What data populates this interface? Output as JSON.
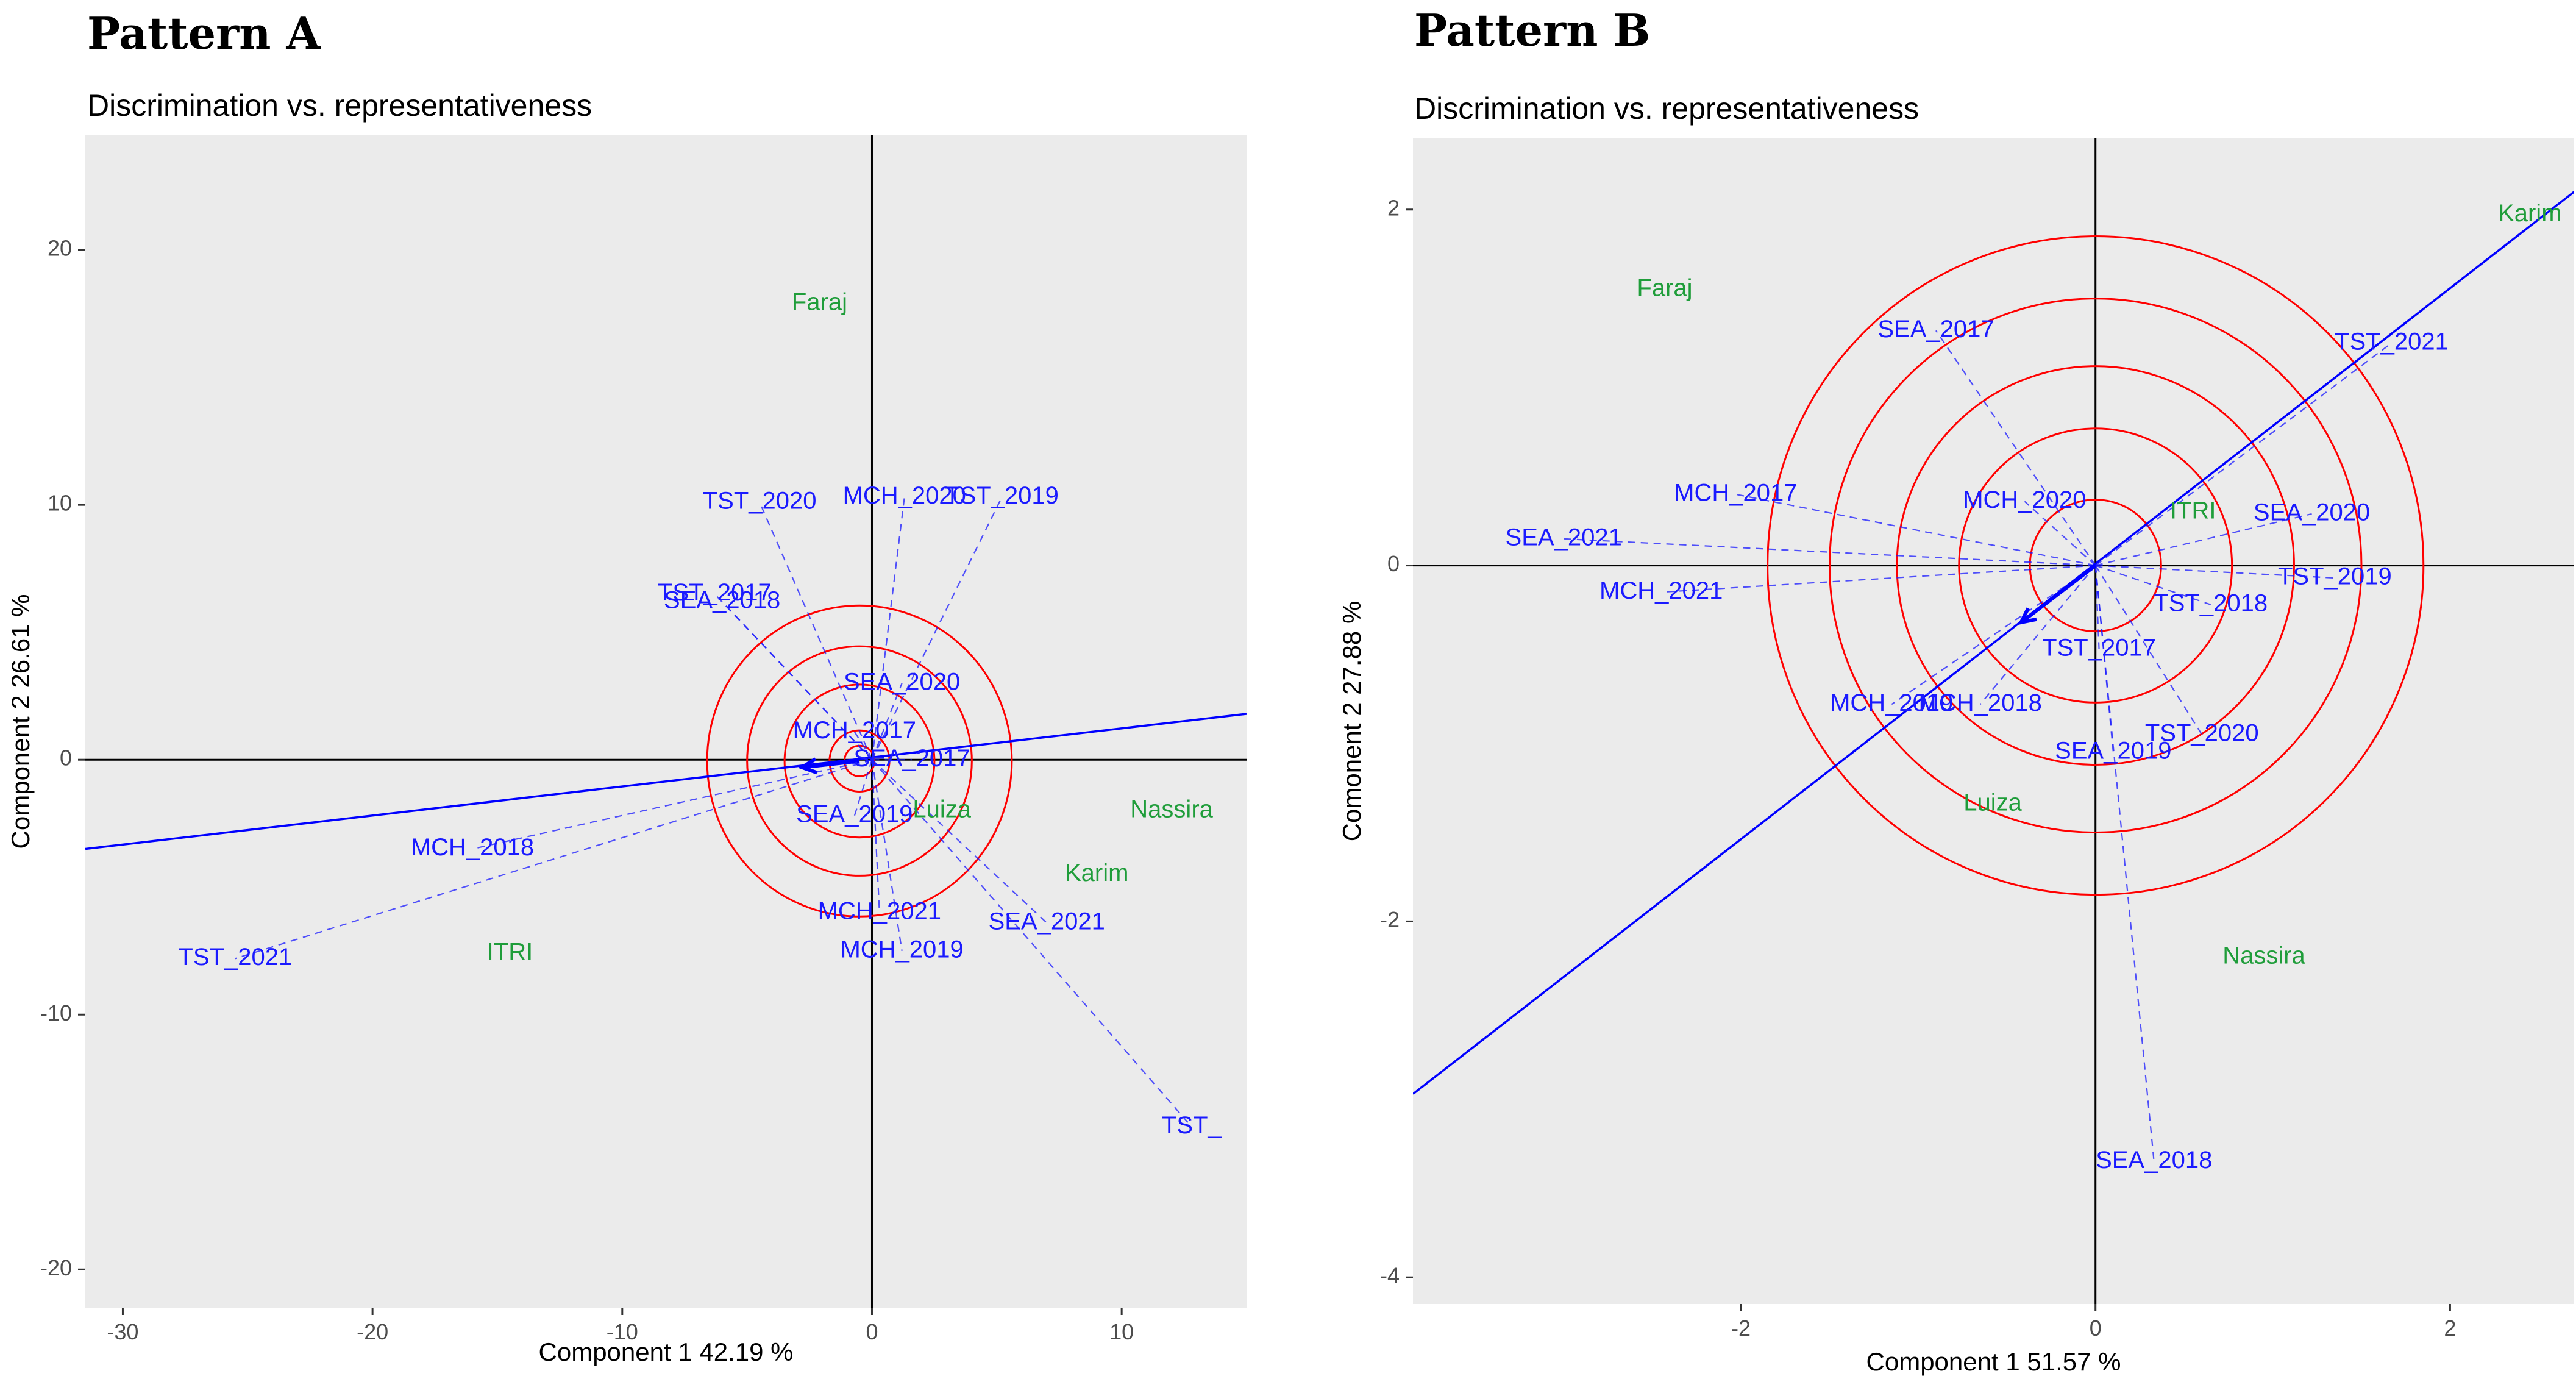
{
  "figure": {
    "colors": {
      "panel_bg": "#ebebeb",
      "env": "#1a1aff",
      "gen": "#1f9d3a",
      "circle": "#ff0000",
      "axis_line": "#000000",
      "ata": "#0000ff"
    }
  },
  "chart_data": [
    {
      "type": "scatter",
      "pattern_label": "Pattern A",
      "title": "Discrimination vs. representativeness",
      "xlabel": "Component 1 42.19 %",
      "ylabel": "Component 2 26.61 %",
      "xlim": [
        -31.5,
        15
      ],
      "ylim": [
        -21.5,
        24.5
      ],
      "xticks": [
        -30,
        -20,
        -10,
        0,
        10
      ],
      "yticks": [
        -20,
        -10,
        0,
        10,
        20
      ],
      "ata_line": [
        [
          -31.5,
          -3.5
        ],
        [
          15,
          1.8
        ]
      ],
      "ata_arrow": [
        [
          -0.5,
          -0.05
        ],
        [
          -2.8,
          -0.3
        ]
      ],
      "circle_center": [
        -0.5,
        -0.05
      ],
      "circle_radii": [
        0.6,
        1.2,
        3.0,
        4.5,
        6.1
      ],
      "environments": [
        {
          "label": "TST_2020",
          "x": -4.5,
          "y": 10.1
        },
        {
          "label": "MCH_2020",
          "x": 1.3,
          "y": 10.3
        },
        {
          "label": "TST_2019",
          "x": 5.2,
          "y": 10.3
        },
        {
          "label": "TST_2017",
          "x": -6.3,
          "y": 6.5
        },
        {
          "label": "SEA_2018",
          "x": -6.0,
          "y": 6.2
        },
        {
          "label": "SEA_2020",
          "x": 1.2,
          "y": 3.0
        },
        {
          "label": "MCH_2017",
          "x": -0.7,
          "y": 1.1
        },
        {
          "label": "SEA_2017",
          "x": 1.6,
          "y": 0.0
        },
        {
          "label": "SEA_2019",
          "x": -0.7,
          "y": -2.2
        },
        {
          "label": "MCH_2018",
          "x": -16.0,
          "y": -3.5
        },
        {
          "label": "TST_2021",
          "x": -25.5,
          "y": -7.8
        },
        {
          "label": "MCH_2021",
          "x": 0.3,
          "y": -6.0
        },
        {
          "label": "MCH_2019",
          "x": 1.2,
          "y": -7.5
        },
        {
          "label": "SEA_2021",
          "x": 7.0,
          "y": -6.4
        },
        {
          "label": "TST_",
          "x": 12.8,
          "y": -14.4
        }
      ],
      "genotypes": [
        {
          "label": "Faraj",
          "x": -2.1,
          "y": 17.9
        },
        {
          "label": "Luiza",
          "x": 2.8,
          "y": -2.0
        },
        {
          "label": "Nassira",
          "x": 12.0,
          "y": -2.0
        },
        {
          "label": "Karim",
          "x": 9.0,
          "y": -4.5
        },
        {
          "label": "ITRI",
          "x": -14.5,
          "y": -7.6
        }
      ]
    },
    {
      "type": "scatter",
      "pattern_label": "Pattern B",
      "title": "Discrimination vs. representativeness",
      "xlabel": "Component 1 51.57 %",
      "ylabel": "Comonent 2 27.88 %",
      "xlim": [
        -3.85,
        2.7
      ],
      "ylim": [
        -4.15,
        2.4
      ],
      "xticks": [
        -2,
        0,
        2
      ],
      "yticks": [
        -4,
        -2,
        0,
        2
      ],
      "ata_line": [
        [
          -3.85,
          -2.97
        ],
        [
          2.7,
          2.1
        ]
      ],
      "ata_arrow": [
        [
          0,
          0
        ],
        [
          -0.42,
          -0.32
        ]
      ],
      "circle_center": [
        0,
        0
      ],
      "circle_radii": [
        0.37,
        0.77,
        1.12,
        1.5,
        1.85
      ],
      "environments": [
        {
          "label": "SEA_2017",
          "x": -0.9,
          "y": 1.32
        },
        {
          "label": "TST_2021",
          "x": 1.67,
          "y": 1.25
        },
        {
          "label": "MCH_2017",
          "x": -2.03,
          "y": 0.4
        },
        {
          "label": "MCH_2020",
          "x": -0.4,
          "y": 0.36
        },
        {
          "label": "SEA_2020",
          "x": 1.22,
          "y": 0.29
        },
        {
          "label": "SEA_2021",
          "x": -3.0,
          "y": 0.15
        },
        {
          "label": "MCH_2021",
          "x": -2.45,
          "y": -0.15
        },
        {
          "label": "TST_2019",
          "x": 1.35,
          "y": -0.07
        },
        {
          "label": "TST_2018",
          "x": 0.65,
          "y": -0.22
        },
        {
          "label": "TST_2017",
          "x": 0.02,
          "y": -0.47
        },
        {
          "label": "MCH_2019",
          "x": -1.15,
          "y": -0.78
        },
        {
          "label": "MCH_2018",
          "x": -0.65,
          "y": -0.78
        },
        {
          "label": "TST_2020",
          "x": 0.6,
          "y": -0.95
        },
        {
          "label": "SEA_2019",
          "x": 0.1,
          "y": -1.05
        },
        {
          "label": "SEA_2018",
          "x": 0.33,
          "y": -3.35
        }
      ],
      "genotypes": [
        {
          "label": "Karim",
          "x": 2.45,
          "y": 1.97
        },
        {
          "label": "Faraj",
          "x": -2.43,
          "y": 1.55
        },
        {
          "label": "ITRI",
          "x": 0.55,
          "y": 0.3
        },
        {
          "label": "Luiza",
          "x": -0.58,
          "y": -1.34
        },
        {
          "label": "Nassira",
          "x": 0.95,
          "y": -2.2
        }
      ]
    }
  ]
}
